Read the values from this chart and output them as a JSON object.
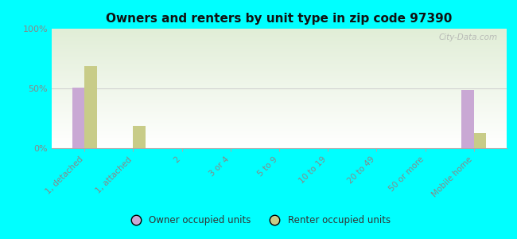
{
  "title": "Owners and renters by unit type in zip code 97390",
  "categories": [
    "1, detached",
    "1, attached",
    "2",
    "3 or 4",
    "5 to 9",
    "10 to 19",
    "20 to 49",
    "50 or more",
    "Mobile home"
  ],
  "owner_values": [
    51,
    0,
    0,
    0,
    0,
    0,
    0,
    0,
    49
  ],
  "renter_values": [
    69,
    19,
    0,
    0,
    0,
    0,
    0,
    0,
    13
  ],
  "owner_color": "#c9a8d4",
  "renter_color": "#c8cc88",
  "background_color": "#00ffff",
  "ylim": [
    0,
    100
  ],
  "yticks": [
    0,
    50,
    100
  ],
  "ytick_labels": [
    "0%",
    "50%",
    "100%"
  ],
  "bar_width": 0.25,
  "legend_owner": "Owner occupied units",
  "legend_renter": "Renter occupied units",
  "watermark": "City-Data.com",
  "tick_color": "#888888",
  "title_fontsize": 11,
  "label_fontsize": 7.5,
  "ytick_fontsize": 8
}
